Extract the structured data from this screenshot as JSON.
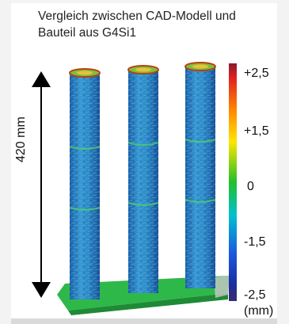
{
  "title": {
    "line1": "Vergleich zwischen CAD-Modell und",
    "line2": "Bauteil aus G4Si1"
  },
  "dimension": {
    "label": "420 mm"
  },
  "colorbar": {
    "ticks": [
      "+2,5",
      "+1,5",
      "0",
      "-1,5",
      "-2,5"
    ],
    "unit": "(mm)",
    "colors": [
      "#8b1a2e",
      "#e02020",
      "#ff8a00",
      "#ffe600",
      "#22c02a",
      "#00c0d0",
      "#1a58e0",
      "#1b2ea0",
      "#3a2a6a"
    ]
  },
  "colors": {
    "pillar_base": "#2f7fc0",
    "pillar_speckle": "#35b0d0",
    "baseplate": "#2fb84a",
    "arrow": "#000000"
  }
}
